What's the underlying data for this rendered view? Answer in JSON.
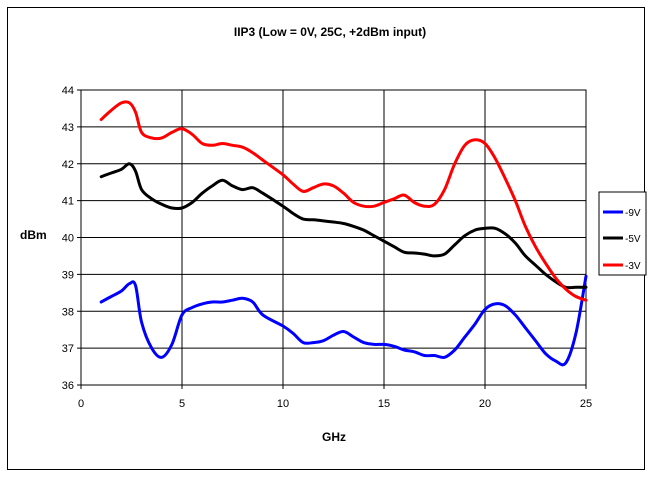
{
  "chart_data": {
    "type": "line",
    "title": "IIP3 (Low = 0V, 25C, +2dBm input)",
    "xlabel": "GHz",
    "ylabel": "dBm",
    "xlim": [
      0,
      25
    ],
    "ylim": [
      36,
      44
    ],
    "xticks": [
      "0",
      "5",
      "10",
      "15",
      "20",
      "25"
    ],
    "yticks": [
      "36",
      "37",
      "38",
      "39",
      "40",
      "41",
      "42",
      "43",
      "44"
    ],
    "grid": true,
    "legend_position": "right",
    "series": [
      {
        "name": "-9V",
        "color": "#0000ff",
        "x": [
          1,
          1.5,
          2,
          2.4,
          2.7,
          3,
          3.5,
          4,
          4.5,
          5,
          5.5,
          6,
          6.5,
          7,
          7.5,
          8,
          8.5,
          9,
          10,
          10.5,
          11,
          11.5,
          12,
          12.5,
          13,
          13.5,
          14,
          14.5,
          15,
          15.5,
          16,
          16.5,
          17,
          17.5,
          18,
          18.5,
          19,
          19.5,
          20,
          20.5,
          21,
          21.5,
          22,
          22.5,
          23,
          23.5,
          24,
          24.5,
          25
        ],
        "y": [
          38.25,
          38.4,
          38.55,
          38.75,
          38.7,
          37.7,
          37.0,
          36.75,
          37.1,
          37.9,
          38.1,
          38.2,
          38.25,
          38.25,
          38.3,
          38.35,
          38.25,
          37.9,
          37.6,
          37.4,
          37.15,
          37.15,
          37.2,
          37.35,
          37.45,
          37.3,
          37.15,
          37.1,
          37.1,
          37.05,
          36.95,
          36.9,
          36.8,
          36.8,
          36.75,
          36.95,
          37.3,
          37.65,
          38.05,
          38.2,
          38.15,
          37.9,
          37.55,
          37.2,
          36.85,
          36.65,
          36.6,
          37.4,
          38.95
        ]
      },
      {
        "name": "-5V",
        "color": "#000000",
        "x": [
          1,
          1.5,
          2,
          2.4,
          2.7,
          3,
          3.5,
          4,
          4.5,
          5,
          5.5,
          6,
          6.5,
          7,
          7.5,
          8,
          8.5,
          9,
          10,
          10.5,
          11,
          11.5,
          12,
          12.5,
          13,
          13.5,
          14,
          14.5,
          15,
          15.5,
          16,
          16.5,
          17,
          17.5,
          18,
          18.5,
          19,
          19.5,
          20,
          20.5,
          21,
          21.5,
          22,
          22.5,
          23,
          23.5,
          24,
          24.5,
          25
        ],
        "y": [
          41.65,
          41.75,
          41.85,
          42.0,
          41.8,
          41.3,
          41.05,
          40.9,
          40.8,
          40.8,
          40.95,
          41.2,
          41.4,
          41.55,
          41.4,
          41.3,
          41.35,
          41.2,
          40.85,
          40.65,
          40.5,
          40.48,
          40.45,
          40.42,
          40.38,
          40.3,
          40.2,
          40.05,
          39.9,
          39.75,
          39.6,
          39.58,
          39.55,
          39.5,
          39.55,
          39.8,
          40.05,
          40.2,
          40.25,
          40.25,
          40.1,
          39.85,
          39.5,
          39.25,
          39.0,
          38.8,
          38.65,
          38.65,
          38.65
        ]
      },
      {
        "name": "-3V",
        "color": "#ff0000",
        "x": [
          1,
          1.5,
          2,
          2.4,
          2.7,
          3,
          3.5,
          4,
          4.5,
          5,
          5.5,
          6,
          6.5,
          7,
          7.5,
          8,
          8.5,
          9,
          10,
          10.5,
          11,
          11.5,
          12,
          12.5,
          13,
          13.5,
          14,
          14.5,
          15,
          15.5,
          16,
          16.5,
          17,
          17.5,
          18,
          18.5,
          19,
          19.5,
          20,
          20.5,
          21,
          21.5,
          22,
          22.5,
          23,
          23.5,
          24,
          24.5,
          25
        ],
        "y": [
          43.2,
          43.45,
          43.65,
          43.65,
          43.4,
          42.85,
          42.7,
          42.7,
          42.85,
          42.95,
          42.8,
          42.55,
          42.5,
          42.55,
          42.5,
          42.45,
          42.3,
          42.1,
          41.7,
          41.45,
          41.25,
          41.35,
          41.45,
          41.4,
          41.2,
          40.95,
          40.85,
          40.85,
          40.95,
          41.05,
          41.15,
          40.95,
          40.85,
          40.9,
          41.3,
          42.0,
          42.5,
          42.65,
          42.55,
          42.15,
          41.6,
          41.0,
          40.3,
          39.75,
          39.3,
          38.9,
          38.6,
          38.4,
          38.3
        ]
      }
    ]
  }
}
